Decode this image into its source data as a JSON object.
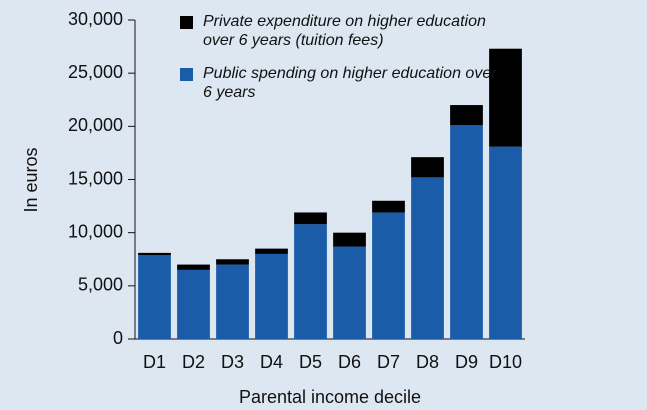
{
  "chart_data": {
    "type": "stacked_bar",
    "x_label": "Parental income decile",
    "y_label": "In euros",
    "categories": [
      "D1",
      "D2",
      "D3",
      "D4",
      "D5",
      "D6",
      "D7",
      "D8",
      "D9",
      "D10"
    ],
    "series": [
      {
        "name": "Public spending on higher education over 6 years",
        "color": "#1a5ca8",
        "values": [
          7900,
          6500,
          7000,
          8000,
          10800,
          8700,
          11900,
          15200,
          20100,
          18100
        ]
      },
      {
        "name": "Private expenditure on higher education over 6 years (tuition fees)",
        "color": "#000000",
        "values": [
          200,
          500,
          500,
          500,
          1100,
          1300,
          1100,
          1900,
          1900,
          9200
        ]
      }
    ],
    "ylim": [
      0,
      30000
    ],
    "yticks": [
      0,
      {
        "value": 5000,
        "label": "5,000"
      },
      {
        "value": 10000,
        "label": "10,000"
      },
      {
        "value": 15000,
        "label": "15,000"
      },
      {
        "value": 20000,
        "label": "20,000"
      },
      {
        "value": 25000,
        "label": "25,000"
      },
      {
        "value": 30000,
        "label": "30,000"
      }
    ],
    "legend": "top-left"
  }
}
